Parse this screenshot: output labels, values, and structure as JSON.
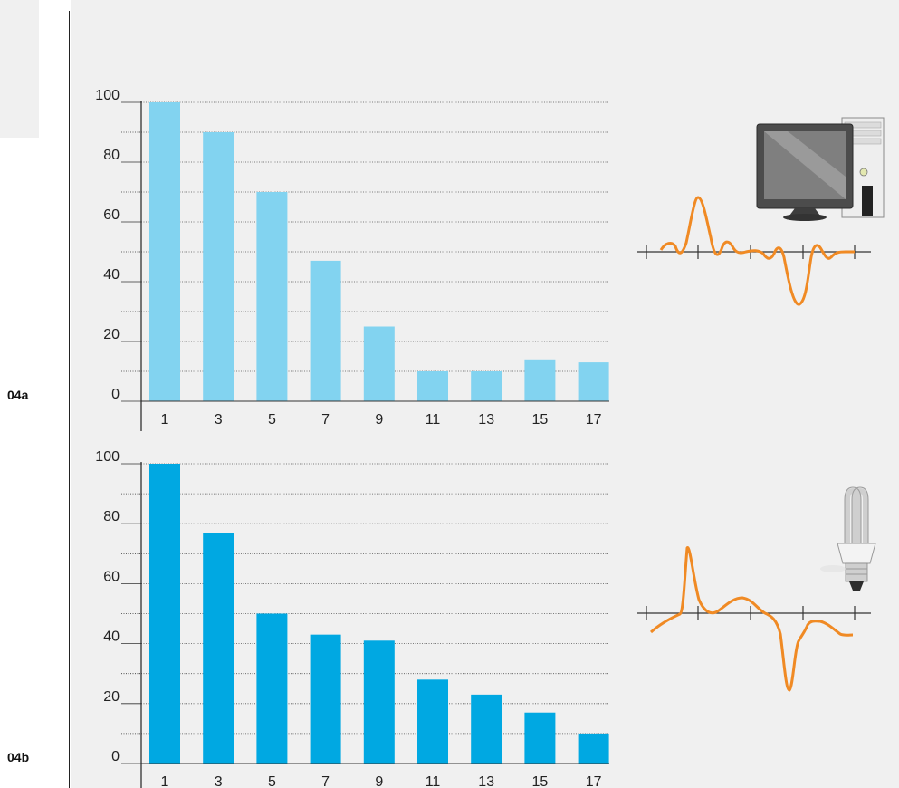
{
  "panels": {
    "a": {
      "label": "04a"
    },
    "b": {
      "label": "04b"
    }
  },
  "colors": {
    "bar_a": "#82d3f0",
    "bar_b": "#00a8e2",
    "waveform": "#f08a24"
  },
  "icons": {
    "a": "desktop-computer-icon",
    "b": "compact-fluorescent-lamp-icon"
  },
  "chart_data": [
    {
      "type": "bar",
      "panel_label": "04a",
      "categories": [
        "1",
        "3",
        "5",
        "7",
        "9",
        "11",
        "13",
        "15",
        "17"
      ],
      "values": [
        100,
        90,
        70,
        47,
        25,
        10,
        10,
        14,
        13
      ],
      "ylim": [
        0,
        100
      ],
      "yticks": [
        "0",
        "20",
        "40",
        "60",
        "80",
        "100"
      ],
      "grid": true,
      "xlabel": "",
      "ylabel": "",
      "title": ""
    },
    {
      "type": "bar",
      "panel_label": "04b",
      "categories": [
        "1",
        "3",
        "5",
        "7",
        "9",
        "11",
        "13",
        "15",
        "17"
      ],
      "values": [
        100,
        77,
        50,
        43,
        41,
        28,
        23,
        17,
        10
      ],
      "ylim": [
        0,
        100
      ],
      "yticks": [
        "0",
        "20",
        "40",
        "60",
        "80",
        "100"
      ],
      "grid": true,
      "xlabel": "",
      "ylabel": "",
      "title": ""
    }
  ]
}
